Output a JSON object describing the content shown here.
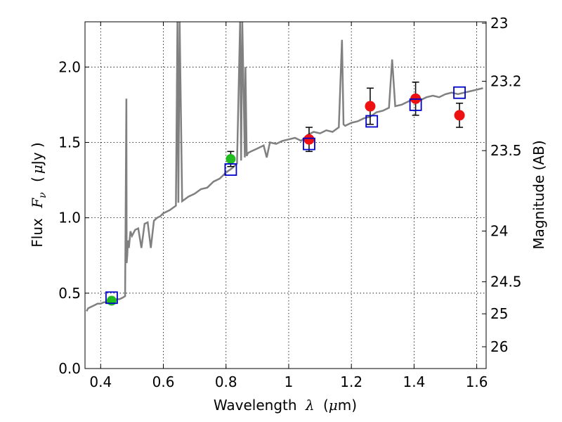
{
  "chart_data": {
    "type": "scatter",
    "xlabel_text": "Wavelength",
    "xlabel_symbol": "λ",
    "xlabel_unit_open": "(",
    "xlabel_unit_mu": "μ",
    "xlabel_unit_rest": "m)",
    "ylabel_text": "Flux",
    "ylabel_symbol": "F",
    "ylabel_subscript": "ν",
    "ylabel_unit_open": "(",
    "ylabel_unit_mu": "μ",
    "ylabel_unit_rest": "Jy )",
    "y2label": "Magnitude (AB)",
    "xlim": [
      0.35,
      1.63
    ],
    "ylim": [
      0.0,
      2.3
    ],
    "x_ticks": [
      0.4,
      0.6,
      0.8,
      1.0,
      1.2,
      1.4,
      1.6
    ],
    "x_tick_labels": [
      "0.4",
      "0.6",
      "0.8",
      "1",
      "1.2",
      "1.4",
      "1.6"
    ],
    "y_ticks": [
      0.0,
      0.5,
      1.0,
      1.5,
      2.0
    ],
    "y_tick_labels": [
      "0.0",
      "0.5",
      "1.0",
      "1.5",
      "2.0"
    ],
    "y2_ticks": [
      23,
      23.2,
      23.5,
      24,
      24.5,
      25,
      26
    ],
    "y2_tick_labels": [
      "23",
      "23.2",
      "23.5",
      "24",
      "24.5",
      "25",
      "26"
    ],
    "grid": true,
    "colors": {
      "model": "#808080",
      "synthetic": "#0000cc",
      "optical": "#22bb22",
      "nir": "#ee1111",
      "errorbar": "#000000"
    },
    "model_spectrum": {
      "x": [
        0.355,
        0.36,
        0.37,
        0.38,
        0.39,
        0.4,
        0.41,
        0.42,
        0.43,
        0.44,
        0.45,
        0.46,
        0.47,
        0.478,
        0.482,
        0.483,
        0.485,
        0.487,
        0.49,
        0.495,
        0.5,
        0.51,
        0.52,
        0.53,
        0.54,
        0.55,
        0.56,
        0.57,
        0.58,
        0.59,
        0.6,
        0.62,
        0.64,
        0.645,
        0.648,
        0.652,
        0.66,
        0.68,
        0.7,
        0.72,
        0.74,
        0.76,
        0.78,
        0.8,
        0.82,
        0.835,
        0.845,
        0.848,
        0.852,
        0.86,
        0.862,
        0.866,
        0.87,
        0.88,
        0.9,
        0.92,
        0.93,
        0.94,
        0.96,
        0.98,
        1.0,
        1.02,
        1.04,
        1.06,
        1.08,
        1.1,
        1.12,
        1.14,
        1.16,
        1.17,
        1.175,
        1.18,
        1.2,
        1.22,
        1.24,
        1.26,
        1.28,
        1.3,
        1.32,
        1.33,
        1.34,
        1.36,
        1.38,
        1.4,
        1.42,
        1.44,
        1.46,
        1.48,
        1.5,
        1.52,
        1.54,
        1.56,
        1.58,
        1.6,
        1.62
      ],
      "y": [
        0.38,
        0.4,
        0.41,
        0.42,
        0.43,
        0.43,
        0.44,
        0.44,
        0.45,
        0.45,
        0.46,
        0.46,
        0.47,
        0.48,
        1.79,
        0.7,
        0.75,
        0.85,
        0.8,
        0.91,
        0.88,
        0.92,
        0.93,
        0.8,
        0.96,
        0.97,
        0.8,
        0.98,
        1.0,
        1.01,
        1.03,
        1.05,
        1.08,
        2.3,
        1.1,
        2.3,
        1.11,
        1.14,
        1.16,
        1.19,
        1.2,
        1.24,
        1.26,
        1.3,
        1.33,
        1.36,
        2.3,
        1.38,
        2.3,
        1.4,
        2.0,
        1.41,
        1.43,
        1.44,
        1.46,
        1.48,
        1.4,
        1.5,
        1.49,
        1.51,
        1.52,
        1.53,
        1.51,
        1.55,
        1.57,
        1.56,
        1.58,
        1.57,
        1.6,
        2.18,
        1.62,
        1.61,
        1.63,
        1.64,
        1.66,
        1.67,
        1.7,
        1.71,
        1.73,
        2.05,
        1.74,
        1.75,
        1.77,
        1.79,
        1.78,
        1.8,
        1.81,
        1.8,
        1.82,
        1.83,
        1.82,
        1.83,
        1.84,
        1.85,
        1.86
      ]
    },
    "synthetic_points": {
      "x": [
        0.435,
        0.815,
        1.065,
        1.265,
        1.405,
        1.545
      ],
      "y": [
        0.47,
        1.32,
        1.49,
        1.64,
        1.75,
        1.83
      ]
    },
    "optical_points": {
      "x": [
        0.435,
        0.815
      ],
      "y": [
        0.45,
        1.39
      ],
      "yerr": [
        0.02,
        0.05
      ]
    },
    "nir_points": {
      "x": [
        1.065,
        1.26,
        1.405,
        1.545
      ],
      "y": [
        1.52,
        1.74,
        1.79,
        1.68
      ],
      "yerr": [
        0.08,
        0.12,
        0.11,
        0.08
      ]
    }
  }
}
